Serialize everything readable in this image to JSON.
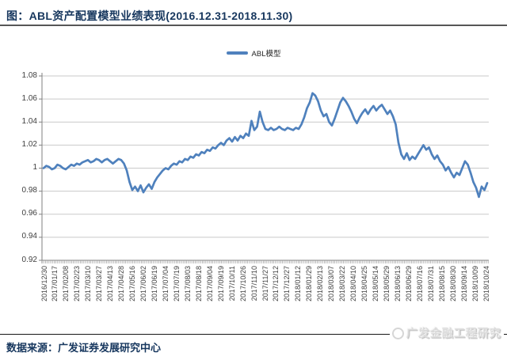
{
  "header": {
    "title": "图：ABL资产配置模型业绩表现(2016.12.31-2018.11.30)"
  },
  "legend": {
    "label": "ABL模型"
  },
  "footer": {
    "source_label": "数据来源：广发证券发展研究中心",
    "watermark": "广发金融工程研究"
  },
  "colors": {
    "line": "#4F81BD",
    "title": "#17375E",
    "grid": "#C9C9C9",
    "axis": "#808080",
    "tick_label": "#3F3F3F",
    "rule_top": "#565656",
    "rule_bottom": "#161616",
    "watermark": "#DCDCDC"
  },
  "chart_data": {
    "type": "line",
    "title": "ABL资产配置模型业绩表现(2016.12.31-2018.11.30)",
    "xlabel": "",
    "ylabel": "",
    "ylim": [
      0.92,
      1.08
    ],
    "grid": true,
    "legend_position": "top-center",
    "y_tick_labels": [
      "1.08",
      "1.06",
      "1.04",
      "1.02",
      "1",
      "0.98",
      "0.96",
      "0.94",
      "0.92"
    ],
    "y_tick_values": [
      1.08,
      1.06,
      1.04,
      1.02,
      1.0,
      0.98,
      0.96,
      0.94,
      0.92
    ],
    "x_tick_labels": [
      "2016/12/30",
      "2017/01/17",
      "2017/02/08",
      "2017/02/23",
      "2017/03/10",
      "2017/03/27",
      "2017/04/13",
      "2017/04/28",
      "2017/05/16",
      "2017/06/02",
      "2017/06/19",
      "2017/07/04",
      "2017/07/19",
      "2017/08/03",
      "2017/08/18",
      "2017/09/04",
      "2017/09/19",
      "2017/10/11",
      "2017/10/26",
      "2017/11/10",
      "2017/11/27",
      "2017/12/12",
      "2017/12/27",
      "2018/01/12",
      "2018/01/29",
      "2018/02/13",
      "2018/03/07",
      "2018/03/22",
      "2018/04/10",
      "2018/04/25",
      "2018/05/14",
      "2018/05/29",
      "2018/06/13",
      "2018/06/29",
      "2018/07/16",
      "2018/07/31",
      "2018/08/15",
      "2018/08/30",
      "2018/09/14",
      "2018/10/09",
      "2018/10/24"
    ],
    "series": [
      {
        "name": "ABL模型",
        "period_start": "2016/12/31",
        "period_end": "2018/11/30",
        "values": [
          1.0,
          1.002,
          1.001,
          0.999,
          1.0,
          1.003,
          1.002,
          1.0,
          0.999,
          1.001,
          1.003,
          1.002,
          1.004,
          1.003,
          1.005,
          1.006,
          1.007,
          1.005,
          1.006,
          1.008,
          1.007,
          1.005,
          1.007,
          1.008,
          1.006,
          1.004,
          1.006,
          1.008,
          1.007,
          1.004,
          0.998,
          0.988,
          0.981,
          0.984,
          0.98,
          0.985,
          0.979,
          0.983,
          0.986,
          0.982,
          0.988,
          0.992,
          0.995,
          0.998,
          1.0,
          0.999,
          1.002,
          1.004,
          1.003,
          1.006,
          1.005,
          1.008,
          1.007,
          1.01,
          1.009,
          1.012,
          1.011,
          1.014,
          1.013,
          1.016,
          1.015,
          1.018,
          1.017,
          1.02,
          1.022,
          1.02,
          1.024,
          1.026,
          1.023,
          1.027,
          1.024,
          1.028,
          1.026,
          1.03,
          1.028,
          1.041,
          1.033,
          1.036,
          1.049,
          1.04,
          1.034,
          1.033,
          1.035,
          1.033,
          1.034,
          1.036,
          1.034,
          1.033,
          1.035,
          1.034,
          1.033,
          1.035,
          1.034,
          1.038,
          1.044,
          1.052,
          1.057,
          1.065,
          1.063,
          1.058,
          1.05,
          1.045,
          1.047,
          1.04,
          1.037,
          1.043,
          1.05,
          1.057,
          1.061,
          1.058,
          1.054,
          1.049,
          1.043,
          1.039,
          1.044,
          1.048,
          1.051,
          1.047,
          1.051,
          1.054,
          1.05,
          1.053,
          1.055,
          1.051,
          1.047,
          1.05,
          1.045,
          1.038,
          1.022,
          1.012,
          1.008,
          1.013,
          1.007,
          1.01,
          1.008,
          1.012,
          1.016,
          1.02,
          1.016,
          1.018,
          1.012,
          1.008,
          1.011,
          1.006,
          1.003,
          0.998,
          1.001,
          0.996,
          0.992,
          0.996,
          0.994,
          1.0,
          1.006,
          1.003,
          0.996,
          0.988,
          0.983,
          0.975,
          0.984,
          0.981,
          0.987
        ]
      }
    ]
  }
}
